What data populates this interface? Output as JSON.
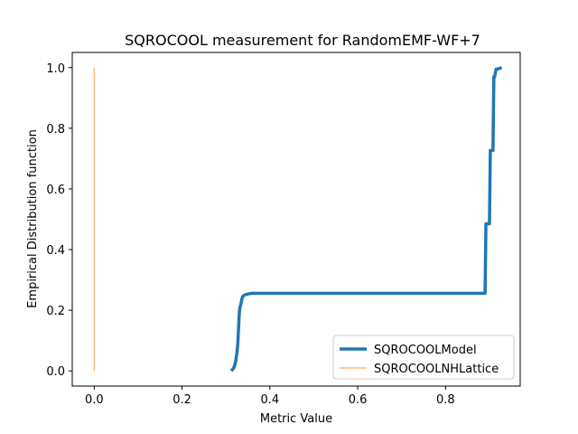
{
  "chart_data": {
    "type": "line",
    "title": "SQROCOOL measurement for RandomEMF-WF+7",
    "xlabel": "Metric Value",
    "ylabel": "Empirical Distribution function",
    "xlim": [
      -0.05,
      0.97
    ],
    "ylim": [
      -0.05,
      1.05
    ],
    "xticks": [
      0.0,
      0.2,
      0.4,
      0.6,
      0.8
    ],
    "xtick_labels": [
      "0.0",
      "0.2",
      "0.4",
      "0.6",
      "0.8"
    ],
    "yticks": [
      0.0,
      0.2,
      0.4,
      0.6,
      0.8,
      1.0
    ],
    "ytick_labels": [
      "0.0",
      "0.2",
      "0.4",
      "0.6",
      "0.8",
      "1.0"
    ],
    "grid": false,
    "legend_position": "lower-right",
    "series": [
      {
        "name": "SQROCOOLModel",
        "color": "#1f77b4",
        "x": [
          0.312,
          0.318,
          0.322,
          0.325,
          0.327,
          0.328,
          0.329,
          0.33,
          0.331,
          0.332,
          0.334,
          0.336,
          0.338,
          0.342,
          0.348,
          0.355,
          0.36,
          0.89,
          0.892,
          0.894,
          0.9,
          0.902,
          0.904,
          0.908,
          0.91,
          0.912,
          0.915,
          0.918,
          0.928
        ],
        "y": [
          0.0,
          0.01,
          0.03,
          0.06,
          0.09,
          0.12,
          0.15,
          0.18,
          0.2,
          0.21,
          0.22,
          0.235,
          0.245,
          0.25,
          0.253,
          0.255,
          0.256,
          0.256,
          0.485,
          0.485,
          0.485,
          0.727,
          0.727,
          0.727,
          0.97,
          0.97,
          0.995,
          0.995,
          1.0
        ]
      },
      {
        "name": "SQROCOOLNHLattice",
        "color": "#ffbb78",
        "x": [
          0.0,
          0.0
        ],
        "y": [
          0.0,
          1.0
        ]
      }
    ]
  }
}
